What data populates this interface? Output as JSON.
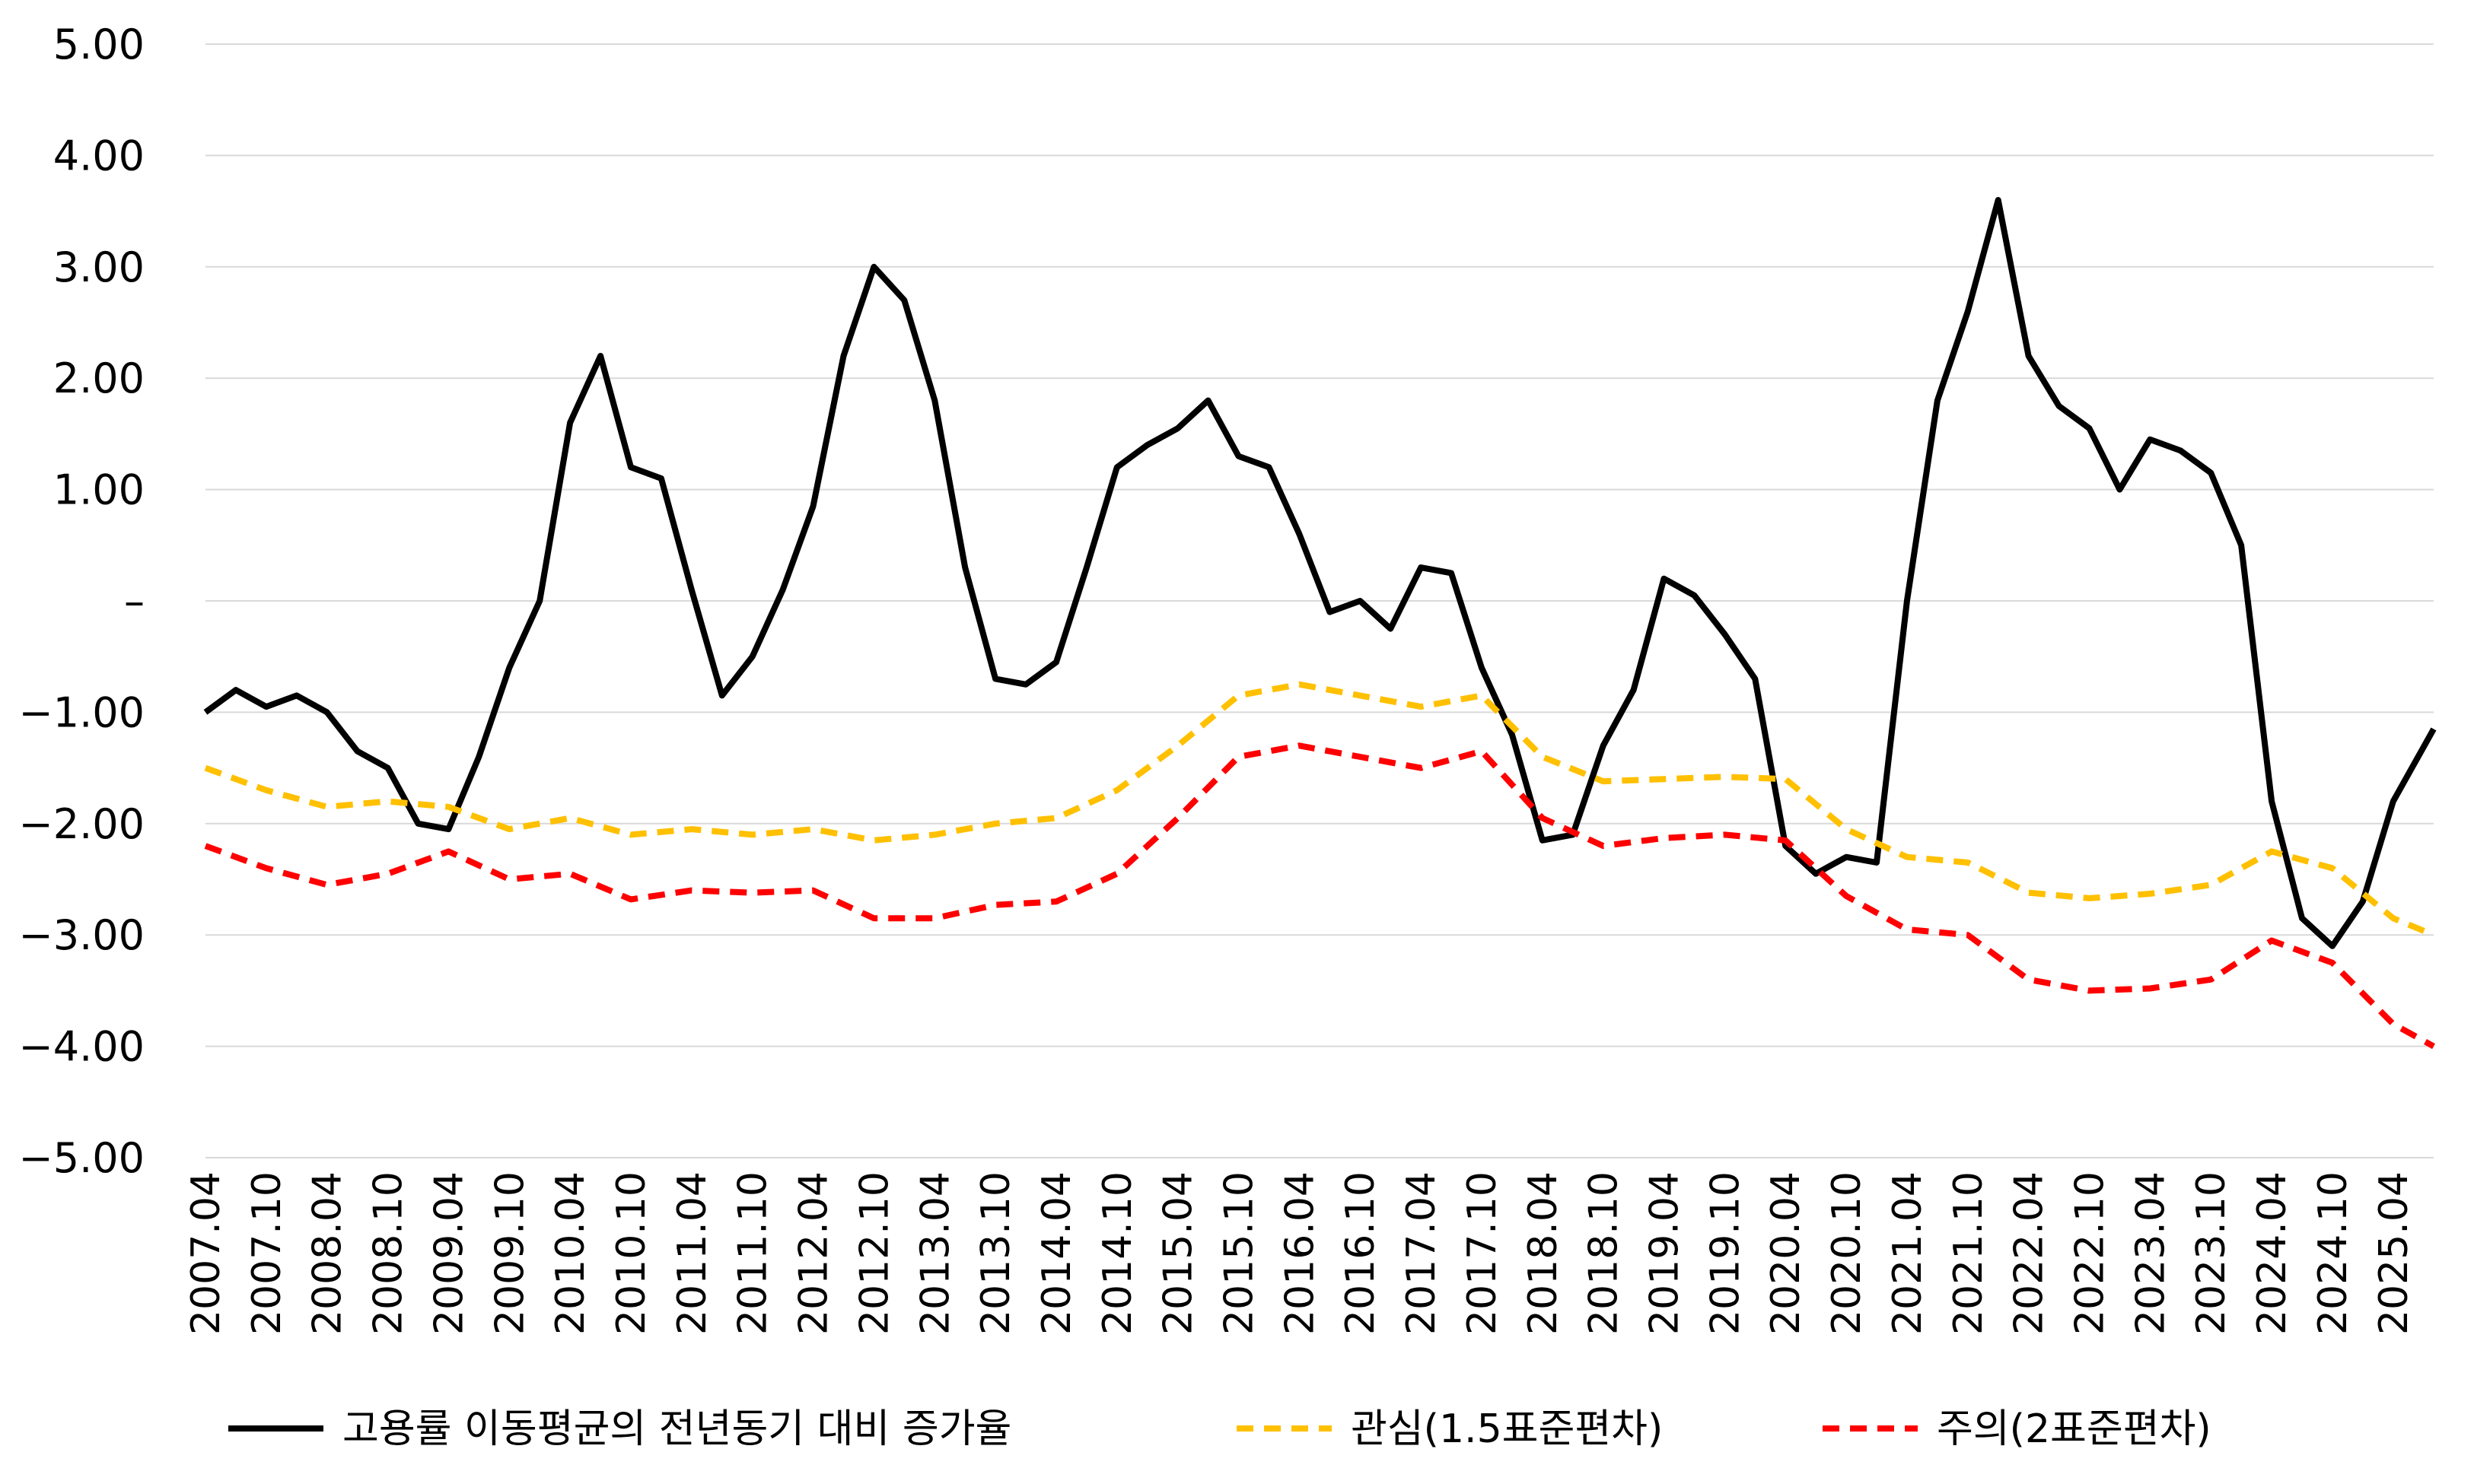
{
  "chart_data": {
    "type": "line",
    "title": "",
    "xlabel": "",
    "ylabel": "",
    "ylim": [
      -5,
      5
    ],
    "yticks": [
      5,
      4,
      3,
      2,
      1,
      0,
      -1,
      -2,
      -3,
      -4,
      -5
    ],
    "ytick_labels": [
      "5.00",
      "4.00",
      "3.00",
      "2.00",
      "1.00",
      "–",
      "−1.00",
      "−2.00",
      "−3.00",
      "−4.00",
      "−5.00"
    ],
    "x_start": "2007.04",
    "x_end": "2025.08",
    "xtick_labels": [
      "2007.04",
      "2007.10",
      "2008.04",
      "2008.10",
      "2009.04",
      "2009.10",
      "2010.04",
      "2010.10",
      "2011.04",
      "2011.10",
      "2012.04",
      "2012.10",
      "2013.04",
      "2013.10",
      "2014.04",
      "2014.10",
      "2015.04",
      "2015.10",
      "2016.04",
      "2016.10",
      "2017.04",
      "2017.10",
      "2018.04",
      "2018.10",
      "2019.04",
      "2019.10",
      "2020.04",
      "2020.10",
      "2021.04",
      "2021.10",
      "2022.04",
      "2022.10",
      "2023.04",
      "2023.10",
      "2024.04",
      "2024.10",
      "2025.04"
    ],
    "grid": "horizontal",
    "legend_position": "bottom",
    "series": [
      {
        "name": "고용률 이동평균의 전년동기 대비 증가율",
        "style": "solid",
        "color": "#000000",
        "points": [
          [
            "2007.04",
            -1.0
          ],
          [
            "2007.07",
            -0.8
          ],
          [
            "2007.10",
            -0.95
          ],
          [
            "2008.01",
            -0.85
          ],
          [
            "2008.04",
            -1.0
          ],
          [
            "2008.07",
            -1.35
          ],
          [
            "2008.10",
            -1.5
          ],
          [
            "2009.01",
            -2.0
          ],
          [
            "2009.04",
            -2.05
          ],
          [
            "2009.07",
            -1.4
          ],
          [
            "2009.10",
            -0.6
          ],
          [
            "2010.01",
            0.0
          ],
          [
            "2010.04",
            1.6
          ],
          [
            "2010.07",
            2.2
          ],
          [
            "2010.10",
            1.2
          ],
          [
            "2011.01",
            1.1
          ],
          [
            "2011.04",
            0.1
          ],
          [
            "2011.07",
            -0.85
          ],
          [
            "2011.10",
            -0.5
          ],
          [
            "2012.01",
            0.1
          ],
          [
            "2012.04",
            0.85
          ],
          [
            "2012.07",
            2.2
          ],
          [
            "2012.10",
            3.0
          ],
          [
            "2013.01",
            2.7
          ],
          [
            "2013.04",
            1.8
          ],
          [
            "2013.07",
            0.3
          ],
          [
            "2013.10",
            -0.7
          ],
          [
            "2014.01",
            -0.75
          ],
          [
            "2014.04",
            -0.55
          ],
          [
            "2014.07",
            0.3
          ],
          [
            "2014.10",
            1.2
          ],
          [
            "2015.01",
            1.4
          ],
          [
            "2015.04",
            1.55
          ],
          [
            "2015.07",
            1.8
          ],
          [
            "2015.10",
            1.3
          ],
          [
            "2016.01",
            1.2
          ],
          [
            "2016.04",
            0.6
          ],
          [
            "2016.07",
            -0.1
          ],
          [
            "2016.10",
            0.0
          ],
          [
            "2017.01",
            -0.25
          ],
          [
            "2017.04",
            0.3
          ],
          [
            "2017.07",
            0.25
          ],
          [
            "2017.10",
            -0.6
          ],
          [
            "2018.01",
            -1.2
          ],
          [
            "2018.04",
            -2.15
          ],
          [
            "2018.07",
            -2.1
          ],
          [
            "2018.10",
            -1.3
          ],
          [
            "2019.01",
            -0.8
          ],
          [
            "2019.04",
            0.2
          ],
          [
            "2019.07",
            0.05
          ],
          [
            "2019.10",
            -0.3
          ],
          [
            "2020.01",
            -0.7
          ],
          [
            "2020.04",
            -2.2
          ],
          [
            "2020.07",
            -2.45
          ],
          [
            "2020.10",
            -2.3
          ],
          [
            "2021.01",
            -2.35
          ],
          [
            "2021.04",
            0.0
          ],
          [
            "2021.07",
            1.8
          ],
          [
            "2021.10",
            2.6
          ],
          [
            "2022.01",
            3.6
          ],
          [
            "2022.04",
            2.2
          ],
          [
            "2022.07",
            1.75
          ],
          [
            "2022.10",
            1.55
          ],
          [
            "2023.01",
            1.0
          ],
          [
            "2023.04",
            1.45
          ],
          [
            "2023.07",
            1.35
          ],
          [
            "2023.10",
            1.15
          ],
          [
            "2024.01",
            0.5
          ],
          [
            "2024.04",
            -1.8
          ],
          [
            "2024.07",
            -2.85
          ],
          [
            "2024.10",
            -3.1
          ],
          [
            "2025.01",
            -2.7
          ],
          [
            "2025.04",
            -1.8
          ],
          [
            "2025.08",
            -1.15
          ]
        ]
      },
      {
        "name": "관심(1.5표준편차)",
        "style": "dashed",
        "color": "#FFC000",
        "points": [
          [
            "2007.04",
            -1.5
          ],
          [
            "2007.10",
            -1.7
          ],
          [
            "2008.04",
            -1.85
          ],
          [
            "2008.10",
            -1.8
          ],
          [
            "2009.04",
            -1.85
          ],
          [
            "2009.10",
            -2.05
          ],
          [
            "2010.04",
            -1.95
          ],
          [
            "2010.10",
            -2.1
          ],
          [
            "2011.04",
            -2.05
          ],
          [
            "2011.10",
            -2.1
          ],
          [
            "2012.04",
            -2.05
          ],
          [
            "2012.10",
            -2.15
          ],
          [
            "2013.04",
            -2.1
          ],
          [
            "2013.10",
            -2.0
          ],
          [
            "2014.04",
            -1.95
          ],
          [
            "2014.10",
            -1.7
          ],
          [
            "2015.04",
            -1.3
          ],
          [
            "2015.10",
            -0.85
          ],
          [
            "2016.04",
            -0.75
          ],
          [
            "2016.10",
            -0.85
          ],
          [
            "2017.04",
            -0.95
          ],
          [
            "2017.10",
            -0.85
          ],
          [
            "2018.04",
            -1.4
          ],
          [
            "2018.10",
            -1.62
          ],
          [
            "2019.04",
            -1.6
          ],
          [
            "2019.10",
            -1.58
          ],
          [
            "2020.04",
            -1.6
          ],
          [
            "2020.10",
            -2.05
          ],
          [
            "2021.04",
            -2.3
          ],
          [
            "2021.10",
            -2.35
          ],
          [
            "2022.04",
            -2.62
          ],
          [
            "2022.10",
            -2.67
          ],
          [
            "2023.04",
            -2.63
          ],
          [
            "2023.10",
            -2.55
          ],
          [
            "2024.04",
            -2.25
          ],
          [
            "2024.10",
            -2.4
          ],
          [
            "2025.04",
            -2.85
          ],
          [
            "2025.08",
            -3.0
          ]
        ]
      },
      {
        "name": "주의(2표준편차)",
        "style": "dashed",
        "color": "#FF0000",
        "points": [
          [
            "2007.04",
            -2.2
          ],
          [
            "2007.10",
            -2.4
          ],
          [
            "2008.04",
            -2.55
          ],
          [
            "2008.10",
            -2.45
          ],
          [
            "2009.04",
            -2.25
          ],
          [
            "2009.10",
            -2.5
          ],
          [
            "2010.04",
            -2.45
          ],
          [
            "2010.10",
            -2.68
          ],
          [
            "2011.04",
            -2.6
          ],
          [
            "2011.10",
            -2.62
          ],
          [
            "2012.04",
            -2.6
          ],
          [
            "2012.10",
            -2.85
          ],
          [
            "2013.04",
            -2.85
          ],
          [
            "2013.10",
            -2.73
          ],
          [
            "2014.04",
            -2.7
          ],
          [
            "2014.10",
            -2.45
          ],
          [
            "2015.04",
            -1.95
          ],
          [
            "2015.10",
            -1.4
          ],
          [
            "2016.04",
            -1.3
          ],
          [
            "2016.10",
            -1.4
          ],
          [
            "2017.04",
            -1.5
          ],
          [
            "2017.10",
            -1.35
          ],
          [
            "2018.04",
            -1.95
          ],
          [
            "2018.10",
            -2.2
          ],
          [
            "2019.04",
            -2.13
          ],
          [
            "2019.10",
            -2.1
          ],
          [
            "2020.04",
            -2.15
          ],
          [
            "2020.10",
            -2.65
          ],
          [
            "2021.04",
            -2.95
          ],
          [
            "2021.10",
            -3.0
          ],
          [
            "2022.04",
            -3.4
          ],
          [
            "2022.10",
            -3.5
          ],
          [
            "2023.04",
            -3.48
          ],
          [
            "2023.10",
            -3.4
          ],
          [
            "2024.04",
            -3.05
          ],
          [
            "2024.10",
            -3.25
          ],
          [
            "2025.04",
            -3.8
          ],
          [
            "2025.08",
            -4.0
          ]
        ]
      }
    ]
  }
}
